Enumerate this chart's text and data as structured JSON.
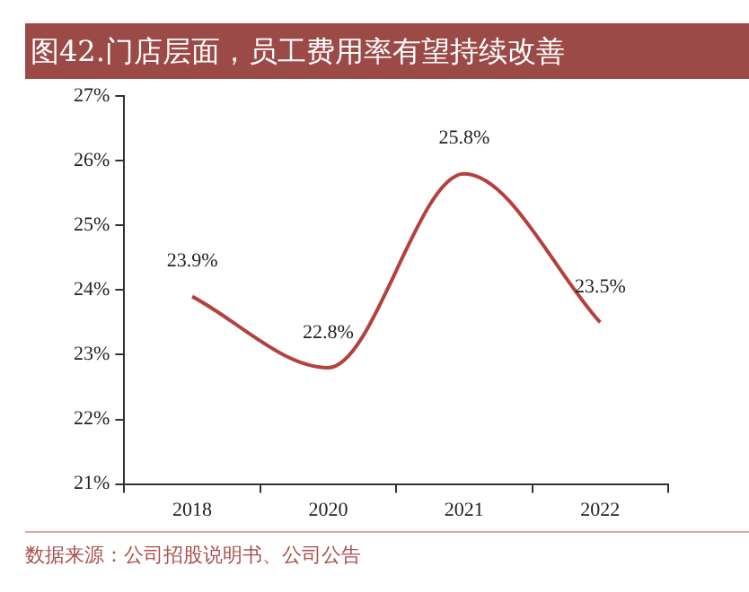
{
  "chart_data": {
    "type": "line",
    "title": "图42.门店层面，员工费用率有望持续改善",
    "categories": [
      "2018",
      "2020",
      "2021",
      "2022"
    ],
    "series": [
      {
        "color": "#b5413e",
        "values": [
          23.9,
          22.8,
          25.8,
          23.5
        ]
      }
    ],
    "value_labels": [
      "23.9%",
      "22.8%",
      "25.8%",
      "23.5%"
    ],
    "ylim": [
      21,
      27
    ],
    "yticks": [
      {
        "value": 21,
        "label": "21%"
      },
      {
        "value": 22,
        "label": "22%"
      },
      {
        "value": 23,
        "label": "23%"
      },
      {
        "value": 24,
        "label": "24%"
      },
      {
        "value": 25,
        "label": "25%"
      },
      {
        "value": 26,
        "label": "26%"
      },
      {
        "value": 27,
        "label": "27%"
      }
    ],
    "grid": false,
    "legend": false,
    "marker": "none",
    "line_style": "solid",
    "annotations": [
      "数据来源：公司招股说明书、公司公告"
    ]
  }
}
